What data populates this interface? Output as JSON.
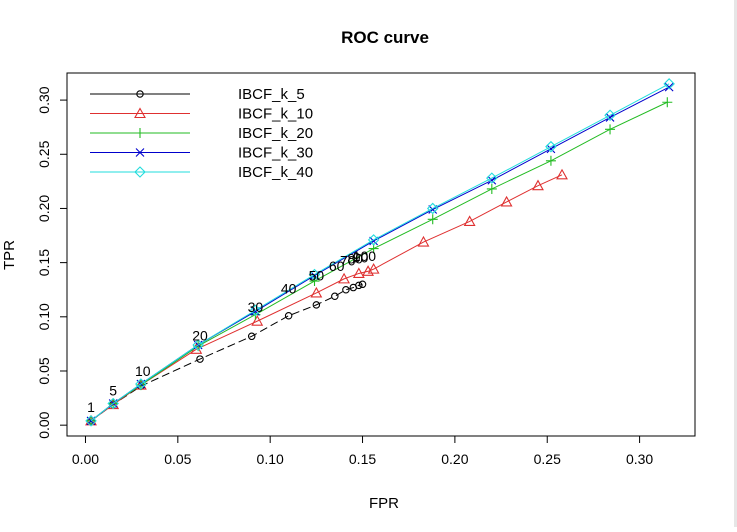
{
  "chart_data": {
    "type": "line",
    "title": "ROC curve",
    "xlabel": "FPR",
    "ylabel": "TPR",
    "xlim": [
      -0.01,
      0.33
    ],
    "ylim": [
      -0.01,
      0.325
    ],
    "xticks": [
      0.0,
      0.05,
      0.1,
      0.15,
      0.2,
      0.25,
      0.3
    ],
    "xtick_labels": [
      "0.00",
      "0.05",
      "0.10",
      "0.15",
      "0.20",
      "0.25",
      "0.30"
    ],
    "yticks": [
      0.0,
      0.05,
      0.1,
      0.15,
      0.2,
      0.25,
      0.3
    ],
    "ytick_labels": [
      "0.00",
      "0.05",
      "0.10",
      "0.15",
      "0.20",
      "0.25",
      "0.30"
    ],
    "legend_position": "top-left",
    "series": [
      {
        "name": "IBCF_k_5",
        "color": "#000000",
        "marker": "circle",
        "dash": "8,4",
        "x": [
          0.003,
          0.015,
          0.03,
          0.062,
          0.09,
          0.11,
          0.125,
          0.135,
          0.141,
          0.145,
          0.148,
          0.15
        ],
        "y": [
          0.004,
          0.019,
          0.036,
          0.061,
          0.082,
          0.101,
          0.111,
          0.119,
          0.125,
          0.127,
          0.129,
          0.13
        ]
      },
      {
        "name": "IBCF_k_10",
        "color": "#df3030",
        "marker": "triangle",
        "dash": "none",
        "x": [
          0.003,
          0.015,
          0.03,
          0.06,
          0.093,
          0.125,
          0.14,
          0.148,
          0.153,
          0.156,
          0.183,
          0.208,
          0.228,
          0.245,
          0.258
        ],
        "y": [
          0.004,
          0.019,
          0.037,
          0.07,
          0.096,
          0.122,
          0.135,
          0.14,
          0.142,
          0.144,
          0.169,
          0.188,
          0.206,
          0.221,
          0.231
        ]
      },
      {
        "name": "IBCF_k_20",
        "color": "#22bb22",
        "marker": "plus",
        "dash": "none",
        "x": [
          0.003,
          0.015,
          0.03,
          0.061,
          0.092,
          0.124,
          0.156,
          0.188,
          0.22,
          0.252,
          0.284,
          0.315
        ],
        "y": [
          0.004,
          0.02,
          0.037,
          0.073,
          0.102,
          0.133,
          0.163,
          0.19,
          0.218,
          0.244,
          0.273,
          0.298
        ]
      },
      {
        "name": "IBCF_k_30",
        "color": "#0000cc",
        "marker": "cross",
        "dash": "none",
        "x": [
          0.003,
          0.015,
          0.03,
          0.061,
          0.092,
          0.124,
          0.156,
          0.188,
          0.22,
          0.252,
          0.284,
          0.316
        ],
        "y": [
          0.004,
          0.02,
          0.038,
          0.074,
          0.105,
          0.138,
          0.17,
          0.199,
          0.226,
          0.255,
          0.284,
          0.312
        ]
      },
      {
        "name": "IBCF_k_40",
        "color": "#22dddd",
        "marker": "diamond",
        "dash": "none",
        "x": [
          0.003,
          0.015,
          0.03,
          0.061,
          0.092,
          0.124,
          0.156,
          0.188,
          0.22,
          0.252,
          0.284,
          0.316
        ],
        "y": [
          0.004,
          0.02,
          0.038,
          0.074,
          0.106,
          0.139,
          0.171,
          0.2,
          0.228,
          0.257,
          0.286,
          0.315
        ]
      }
    ],
    "annotations": [
      {
        "text": "1",
        "x": 0.003,
        "y": 0.004
      },
      {
        "text": "5",
        "x": 0.015,
        "y": 0.019
      },
      {
        "text": "10",
        "x": 0.031,
        "y": 0.037
      },
      {
        "text": "20",
        "x": 0.062,
        "y": 0.07
      },
      {
        "text": "30",
        "x": 0.092,
        "y": 0.096
      },
      {
        "text": "40",
        "x": 0.11,
        "y": 0.113
      },
      {
        "text": "50",
        "x": 0.125,
        "y": 0.125
      },
      {
        "text": "60",
        "x": 0.136,
        "y": 0.134
      },
      {
        "text": "70",
        "x": 0.142,
        "y": 0.139
      },
      {
        "text": "80",
        "x": 0.146,
        "y": 0.141
      },
      {
        "text": "90",
        "x": 0.149,
        "y": 0.142
      },
      {
        "text": "100",
        "x": 0.151,
        "y": 0.143
      }
    ]
  }
}
